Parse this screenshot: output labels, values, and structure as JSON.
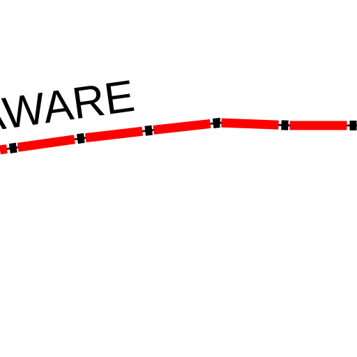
{
  "labels": {
    "state": "AWARE"
  }
}
